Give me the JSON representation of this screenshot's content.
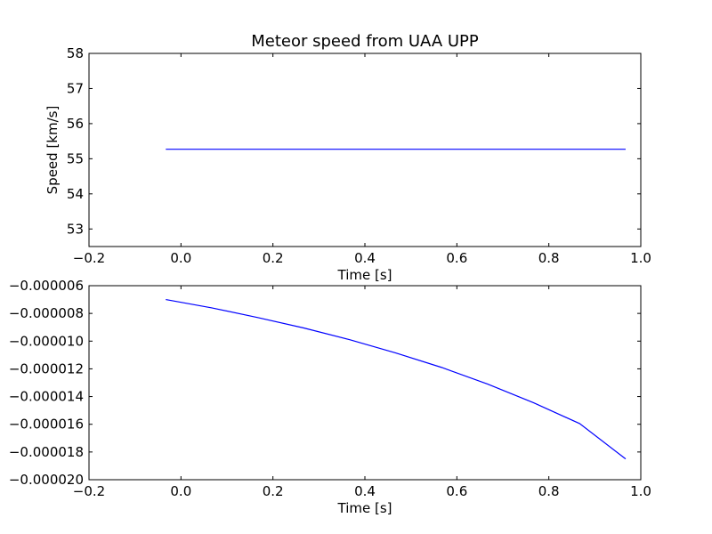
{
  "chart_data": [
    {
      "type": "line",
      "title": "Meteor speed from  UAA UPP",
      "xlabel": "Time [s]",
      "ylabel": "Speed [km/s]",
      "xlim": [
        -0.2,
        1.0
      ],
      "ylim": [
        52.5,
        58
      ],
      "xticks": [
        -0.2,
        0.0,
        0.2,
        0.4,
        0.6,
        0.8,
        1.0
      ],
      "xtick_labels": [
        "−0.2",
        "0.0",
        "0.2",
        "0.4",
        "0.6",
        "0.8",
        "1.0"
      ],
      "yticks": [
        53,
        54,
        55,
        56,
        57,
        58
      ],
      "ytick_labels": [
        "53",
        "54",
        "55",
        "56",
        "57",
        "58"
      ],
      "grid": false,
      "series": [
        {
          "color": "#0000ff",
          "x": [
            -0.033,
            0.967
          ],
          "y": [
            55.27,
            55.27
          ]
        }
      ]
    },
    {
      "type": "line",
      "title": "",
      "xlabel": "Time [s]",
      "ylabel": "",
      "xlim": [
        -0.2,
        1.0
      ],
      "ylim": [
        -2e-05,
        -6e-06
      ],
      "xticks": [
        -0.2,
        0.0,
        0.2,
        0.4,
        0.6,
        0.8,
        1.0
      ],
      "xtick_labels": [
        "−0.2",
        "0.0",
        "0.2",
        "0.4",
        "0.6",
        "0.8",
        "1.0"
      ],
      "yticks": [
        -2e-05,
        -1.8e-05,
        -1.6e-05,
        -1.4e-05,
        -1.2e-05,
        -1e-05,
        -8e-06,
        -6e-06
      ],
      "ytick_labels": [
        "−0.000020",
        "−0.000018",
        "−0.000016",
        "−0.000014",
        "−0.000012",
        "−0.000010",
        "−0.000008",
        "−0.000006"
      ],
      "grid": false,
      "series": [
        {
          "color": "#0000ff",
          "x": [
            -0.033,
            0.067,
            0.167,
            0.267,
            0.367,
            0.467,
            0.567,
            0.667,
            0.767,
            0.867,
            0.967
          ],
          "y": [
            -7e-06,
            -7.6e-06,
            -8.3e-06,
            -9.05e-06,
            -9.9e-06,
            -1.085e-05,
            -1.19e-05,
            -1.31e-05,
            -1.445e-05,
            -1.595e-05,
            -1.85e-05
          ]
        }
      ]
    }
  ]
}
